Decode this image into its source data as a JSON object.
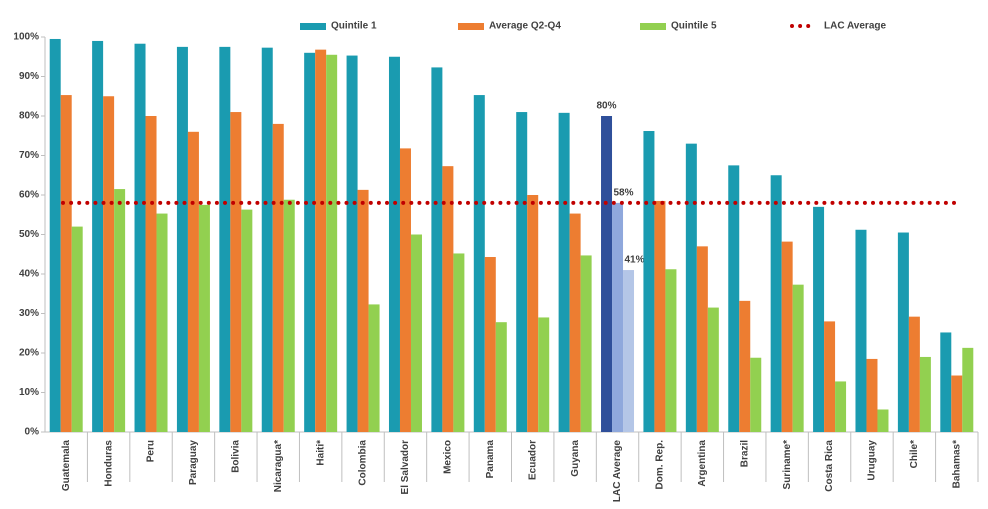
{
  "chart_data": {
    "type": "bar",
    "categories": [
      "Guatemala",
      "Honduras",
      "Peru",
      "Paraguay",
      "Bolivia",
      "Nicaragua*",
      "Haiti*",
      "Colombia",
      "El Salvador",
      "Mexico",
      "Panama",
      "Ecuador",
      "Guyana",
      "LAC Average",
      "Dom. Rep.",
      "Argentina",
      "Brazil",
      "Suriname*",
      "Costa Rica",
      "Uruguay",
      "Chile*",
      "Bahamas*"
    ],
    "series": [
      {
        "name": "Quintile 1",
        "color": "#1a9bb0",
        "colors": [
          "#1a9bb0",
          "#1a9bb0",
          "#1a9bb0",
          "#1a9bb0",
          "#1a9bb0",
          "#1a9bb0",
          "#1a9bb0",
          "#1a9bb0",
          "#1a9bb0",
          "#1a9bb0",
          "#1a9bb0",
          "#1a9bb0",
          "#1a9bb0",
          "#2f4f9a",
          "#1a9bb0",
          "#1a9bb0",
          "#1a9bb0",
          "#1a9bb0",
          "#1a9bb0",
          "#1a9bb0",
          "#1a9bb0",
          "#1a9bb0"
        ],
        "values": [
          99.5,
          99,
          98.3,
          97.5,
          97.5,
          97.3,
          96,
          95.3,
          95,
          92.3,
          85.3,
          81,
          80.8,
          80,
          76.2,
          73,
          67.5,
          65,
          57,
          51.2,
          50.5,
          25.2
        ],
        "value_labels": [
          null,
          null,
          null,
          null,
          null,
          null,
          null,
          null,
          null,
          null,
          null,
          null,
          null,
          "80%",
          null,
          null,
          null,
          null,
          null,
          null,
          null,
          null
        ]
      },
      {
        "name": "Average Q2-Q4",
        "color": "#ed7d31",
        "colors": [
          "#ed7d31",
          "#ed7d31",
          "#ed7d31",
          "#ed7d31",
          "#ed7d31",
          "#ed7d31",
          "#ed7d31",
          "#ed7d31",
          "#ed7d31",
          "#ed7d31",
          "#ed7d31",
          "#ed7d31",
          "#ed7d31",
          "#8fa8dc",
          "#ed7d31",
          "#ed7d31",
          "#ed7d31",
          "#ed7d31",
          "#ed7d31",
          "#ed7d31",
          "#ed7d31",
          "#ed7d31"
        ],
        "values": [
          85.3,
          85,
          80,
          76,
          81,
          78,
          96.8,
          61.3,
          71.8,
          67.3,
          44.3,
          60,
          55.3,
          58,
          58.5,
          47,
          33.2,
          48.2,
          28,
          18.5,
          29.2,
          14.3
        ],
        "value_labels": [
          null,
          null,
          null,
          null,
          null,
          null,
          null,
          null,
          null,
          null,
          null,
          null,
          null,
          "58%",
          null,
          null,
          null,
          null,
          null,
          null,
          null,
          null
        ]
      },
      {
        "name": "Quintile 5",
        "color": "#92d050",
        "colors": [
          "#92d050",
          "#92d050",
          "#92d050",
          "#92d050",
          "#92d050",
          "#92d050",
          "#92d050",
          "#92d050",
          "#92d050",
          "#92d050",
          "#92d050",
          "#92d050",
          "#92d050",
          "#b4c6e7",
          "#92d050",
          "#92d050",
          "#92d050",
          "#92d050",
          "#92d050",
          "#92d050",
          "#92d050",
          "#92d050"
        ],
        "values": [
          52,
          61.5,
          55.3,
          57.5,
          56.3,
          58.8,
          95.5,
          32.3,
          50,
          45.2,
          27.8,
          29,
          44.7,
          41,
          41.2,
          31.5,
          18.8,
          37.3,
          12.8,
          5.7,
          19,
          21.3
        ],
        "value_labels": [
          null,
          null,
          null,
          null,
          null,
          null,
          null,
          null,
          null,
          null,
          null,
          null,
          null,
          "41%",
          null,
          null,
          null,
          null,
          null,
          null,
          null,
          null
        ]
      }
    ],
    "reference_line": {
      "name": "LAC Average",
      "value": 58,
      "color": "#c00000"
    },
    "ylim": [
      0,
      100
    ],
    "yticks": [
      {
        "value": 0,
        "label": "0%"
      },
      {
        "value": 10,
        "label": "10%"
      },
      {
        "value": 20,
        "label": "20%"
      },
      {
        "value": 30,
        "label": "30%"
      },
      {
        "value": 40,
        "label": "40%"
      },
      {
        "value": 50,
        "label": "50%"
      },
      {
        "value": 60,
        "label": "60%"
      },
      {
        "value": 70,
        "label": "70%"
      },
      {
        "value": 80,
        "label": "80%"
      },
      {
        "value": 90,
        "label": "90%"
      },
      {
        "value": 100,
        "label": "100%"
      }
    ],
    "grid": false
  }
}
